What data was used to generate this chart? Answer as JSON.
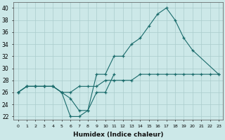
{
  "xlabel": "Humidex (Indice chaleur)",
  "background_color": "#cce8e8",
  "grid_color": "#aacccc",
  "line_color": "#1a6b6b",
  "x_values": [
    0,
    1,
    2,
    3,
    4,
    5,
    6,
    7,
    8,
    9,
    10,
    11,
    12,
    13,
    14,
    15,
    16,
    17,
    18,
    19,
    20,
    21,
    22,
    23
  ],
  "series1": [
    26,
    27,
    27,
    27,
    27,
    26,
    25,
    23,
    23,
    29,
    29,
    32,
    32,
    34,
    35,
    37,
    39,
    40,
    38,
    35,
    33,
    null,
    null,
    29
  ],
  "series2": [
    26,
    27,
    27,
    27,
    27,
    26,
    22,
    22,
    23,
    26,
    26,
    29,
    null,
    null,
    null,
    null,
    null,
    null,
    null,
    null,
    null,
    null,
    null,
    null
  ],
  "series3": [
    26,
    27,
    27,
    27,
    27,
    26,
    26,
    27,
    27,
    27,
    28,
    28,
    28,
    28,
    29,
    29,
    29,
    29,
    29,
    29,
    29,
    29,
    29,
    29
  ],
  "ylim": [
    21.5,
    41
  ],
  "xlim": [
    -0.5,
    23.5
  ]
}
